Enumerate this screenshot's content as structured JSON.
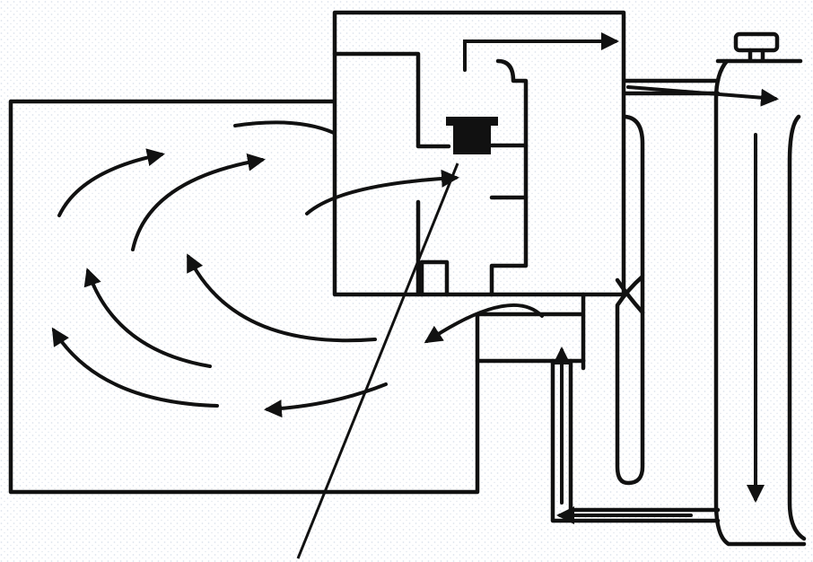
{
  "diagram": {
    "ink_color": "#111111",
    "background_color": "#ffffff",
    "stipple_color": "#dde3ec",
    "components": [
      "oven-cavity",
      "magnetron-housing",
      "magnetron",
      "waveguide",
      "power-supply-tube",
      "cooling-conduit",
      "antenna-probe"
    ]
  }
}
